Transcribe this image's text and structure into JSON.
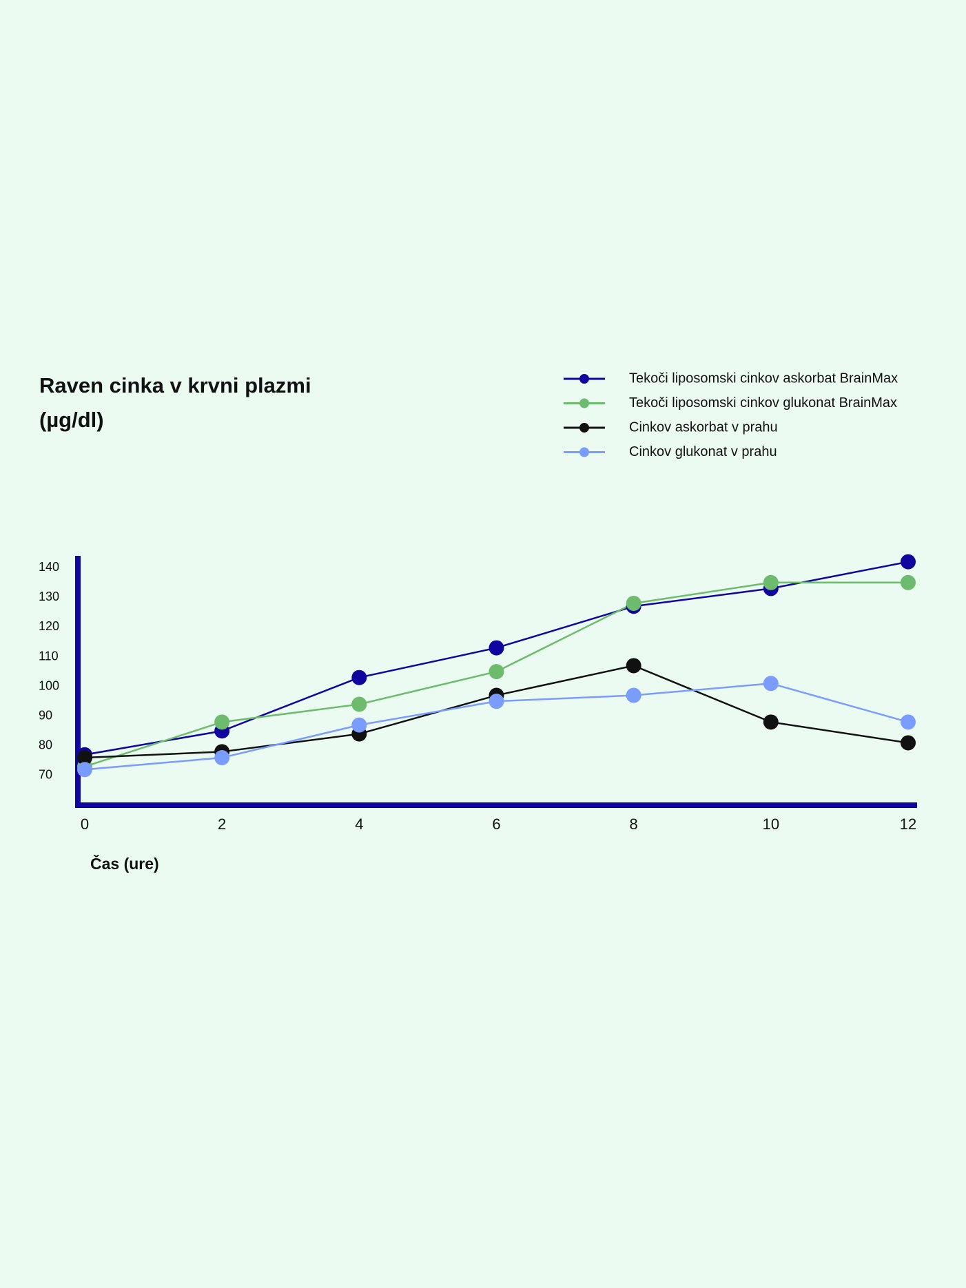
{
  "chart_data": {
    "type": "line",
    "title": "Raven cinka v krvni plazmi (µg/dl)",
    "x_label": "Čas (ure)",
    "x": [
      0,
      2,
      4,
      6,
      8,
      10,
      12
    ],
    "xlim": [
      0,
      12
    ],
    "xticks": [
      0,
      2,
      4,
      6,
      8,
      10,
      12
    ],
    "ylim": [
      60,
      144
    ],
    "yticks": [
      70,
      80,
      90,
      100,
      110,
      120,
      130,
      140
    ],
    "grid": false,
    "legend": "top-right",
    "series": [
      {
        "name": "Tekoči liposomski cinkov askorbat BrainMax",
        "color": "#10069f",
        "values": [
          77,
          85,
          103,
          113,
          127,
          133,
          142
        ]
      },
      {
        "name": "Tekoči liposomski cinkov glukonat BrainMax",
        "color": "#6dbb6d",
        "values": [
          73,
          88,
          94,
          105,
          128,
          135,
          135
        ]
      },
      {
        "name": "Cinkov askorbat v prahu",
        "color": "#111111",
        "values": [
          76,
          78,
          84,
          97,
          107,
          88,
          81
        ]
      },
      {
        "name": "Cinkov glukonat v prahu",
        "color": "#7b9cff",
        "values": [
          72,
          76,
          87,
          95,
          97,
          101,
          88
        ]
      }
    ]
  }
}
